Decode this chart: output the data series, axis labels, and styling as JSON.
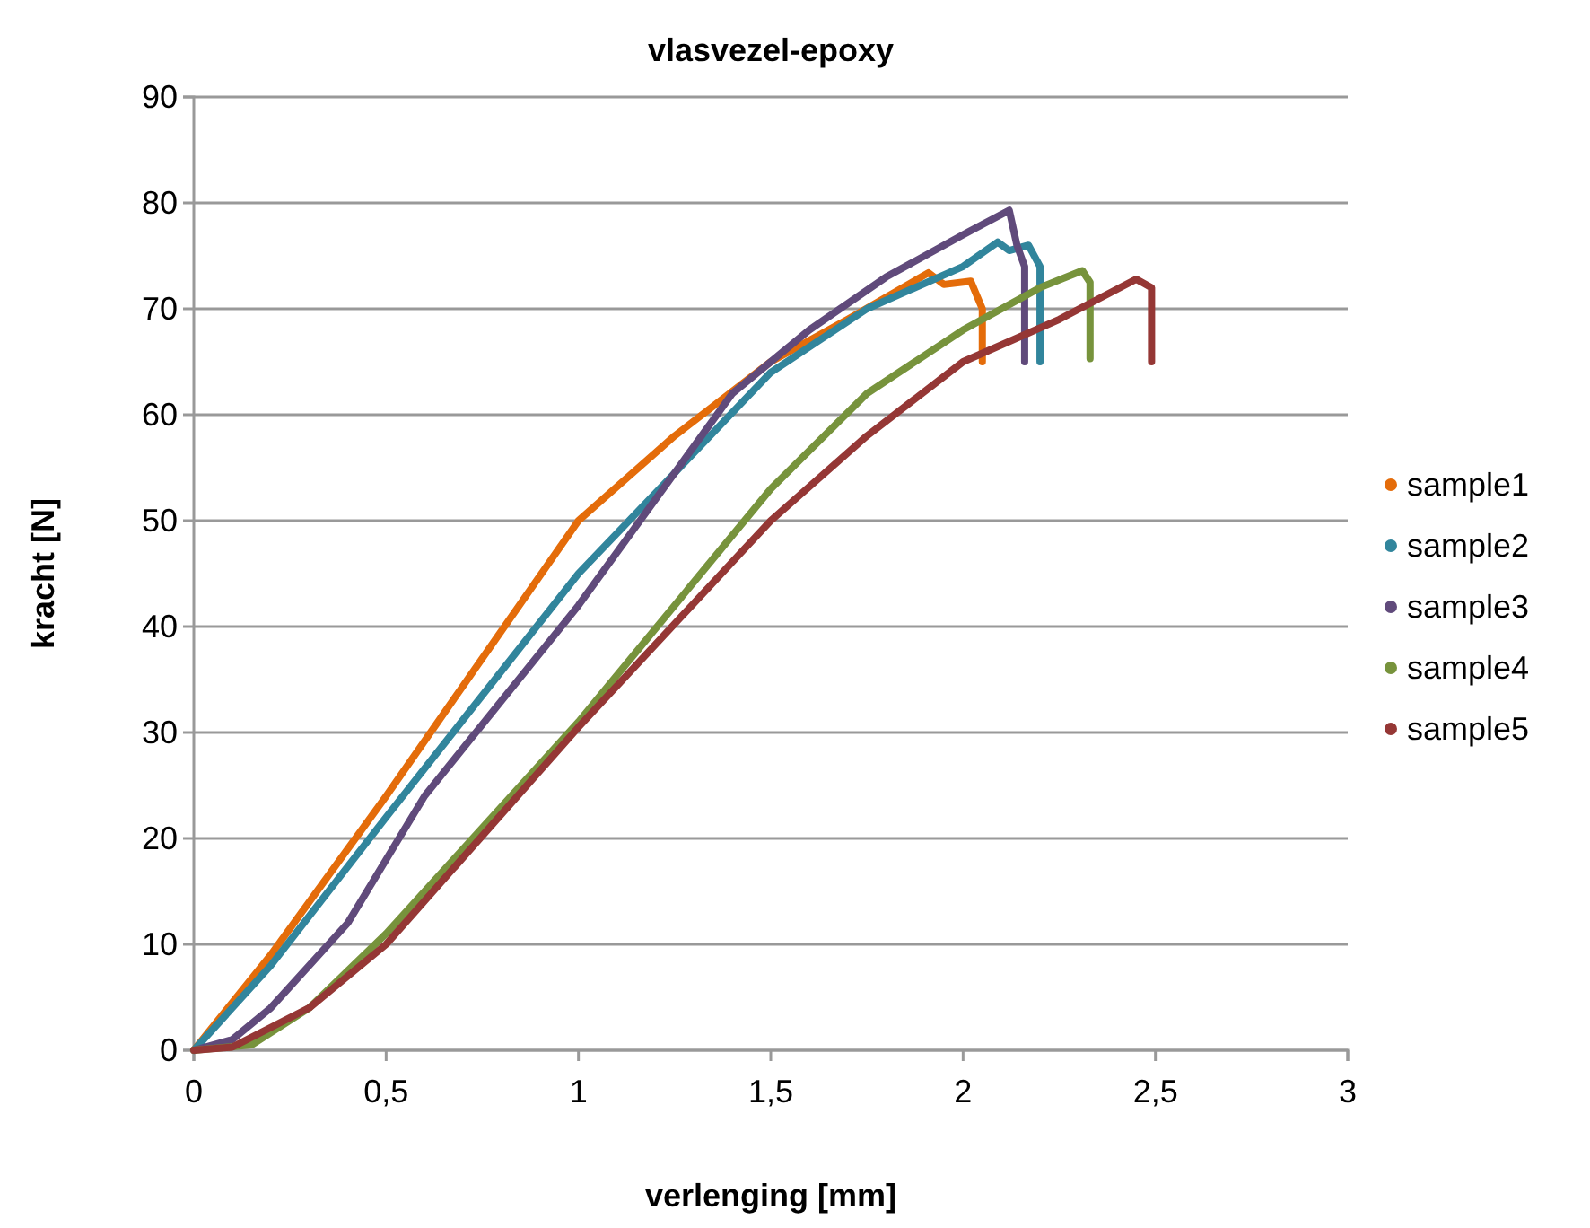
{
  "chart_data": {
    "type": "line",
    "title": "vlasvezel-epoxy",
    "xlabel": "verlenging [mm]",
    "ylabel": "kracht [N]",
    "xlim": [
      0,
      3
    ],
    "xticks": [
      0,
      {
        "value": 0.5,
        "label": "0,5"
      },
      1,
      {
        "value": 1.5,
        "label": "1,5"
      },
      2,
      {
        "value": 2.5,
        "label": "2,5"
      },
      3
    ],
    "ylim": [
      0,
      90
    ],
    "yticks": [
      0,
      10,
      20,
      30,
      40,
      50,
      60,
      70,
      80,
      90
    ],
    "grid": "y",
    "legend": "right",
    "marker": "none",
    "line_style": "solid",
    "series": [
      {
        "name": "sample1",
        "color": "#e46c0a",
        "x": [
          0,
          0.2,
          0.5,
          1,
          1.25,
          1.5,
          1.7,
          1.91,
          1.95,
          2.02,
          2.05,
          2.05
        ],
        "values": [
          0,
          9,
          24,
          50,
          58,
          65,
          69,
          73.4,
          72.3,
          72.6,
          70,
          65
        ]
      },
      {
        "name": "sample2",
        "color": "#31859c",
        "x": [
          0,
          0.2,
          0.5,
          1,
          1.5,
          1.75,
          2,
          2.09,
          2.12,
          2.17,
          2.2,
          2.2
        ],
        "values": [
          0,
          8,
          22,
          45,
          64,
          70,
          74,
          76.3,
          75.5,
          76,
          74,
          65
        ]
      },
      {
        "name": "sample3",
        "color": "#604a7b",
        "x": [
          0,
          0.1,
          0.2,
          0.4,
          0.6,
          1,
          1.4,
          1.6,
          1.8,
          2,
          2.12,
          2.14,
          2.16,
          2.16
        ],
        "values": [
          0,
          1,
          4,
          12,
          24,
          42,
          62,
          68,
          73,
          77,
          79.3,
          76,
          74,
          65
        ]
      },
      {
        "name": "sample4",
        "color": "#77933c",
        "x": [
          0,
          0.15,
          0.3,
          0.5,
          1,
          1.5,
          1.75,
          2,
          2.2,
          2.31,
          2.33,
          2.33
        ],
        "values": [
          0,
          0.5,
          4,
          11,
          31,
          53,
          62,
          68,
          72,
          73.6,
          72.5,
          65.3
        ]
      },
      {
        "name": "sample5",
        "color": "#953735",
        "x": [
          0,
          0.1,
          0.3,
          0.5,
          1,
          1.5,
          1.75,
          2,
          2.25,
          2.45,
          2.49,
          2.49
        ],
        "values": [
          0,
          0.3,
          4,
          10,
          30.5,
          50,
          58,
          65,
          69,
          72.8,
          72,
          65
        ]
      }
    ]
  }
}
